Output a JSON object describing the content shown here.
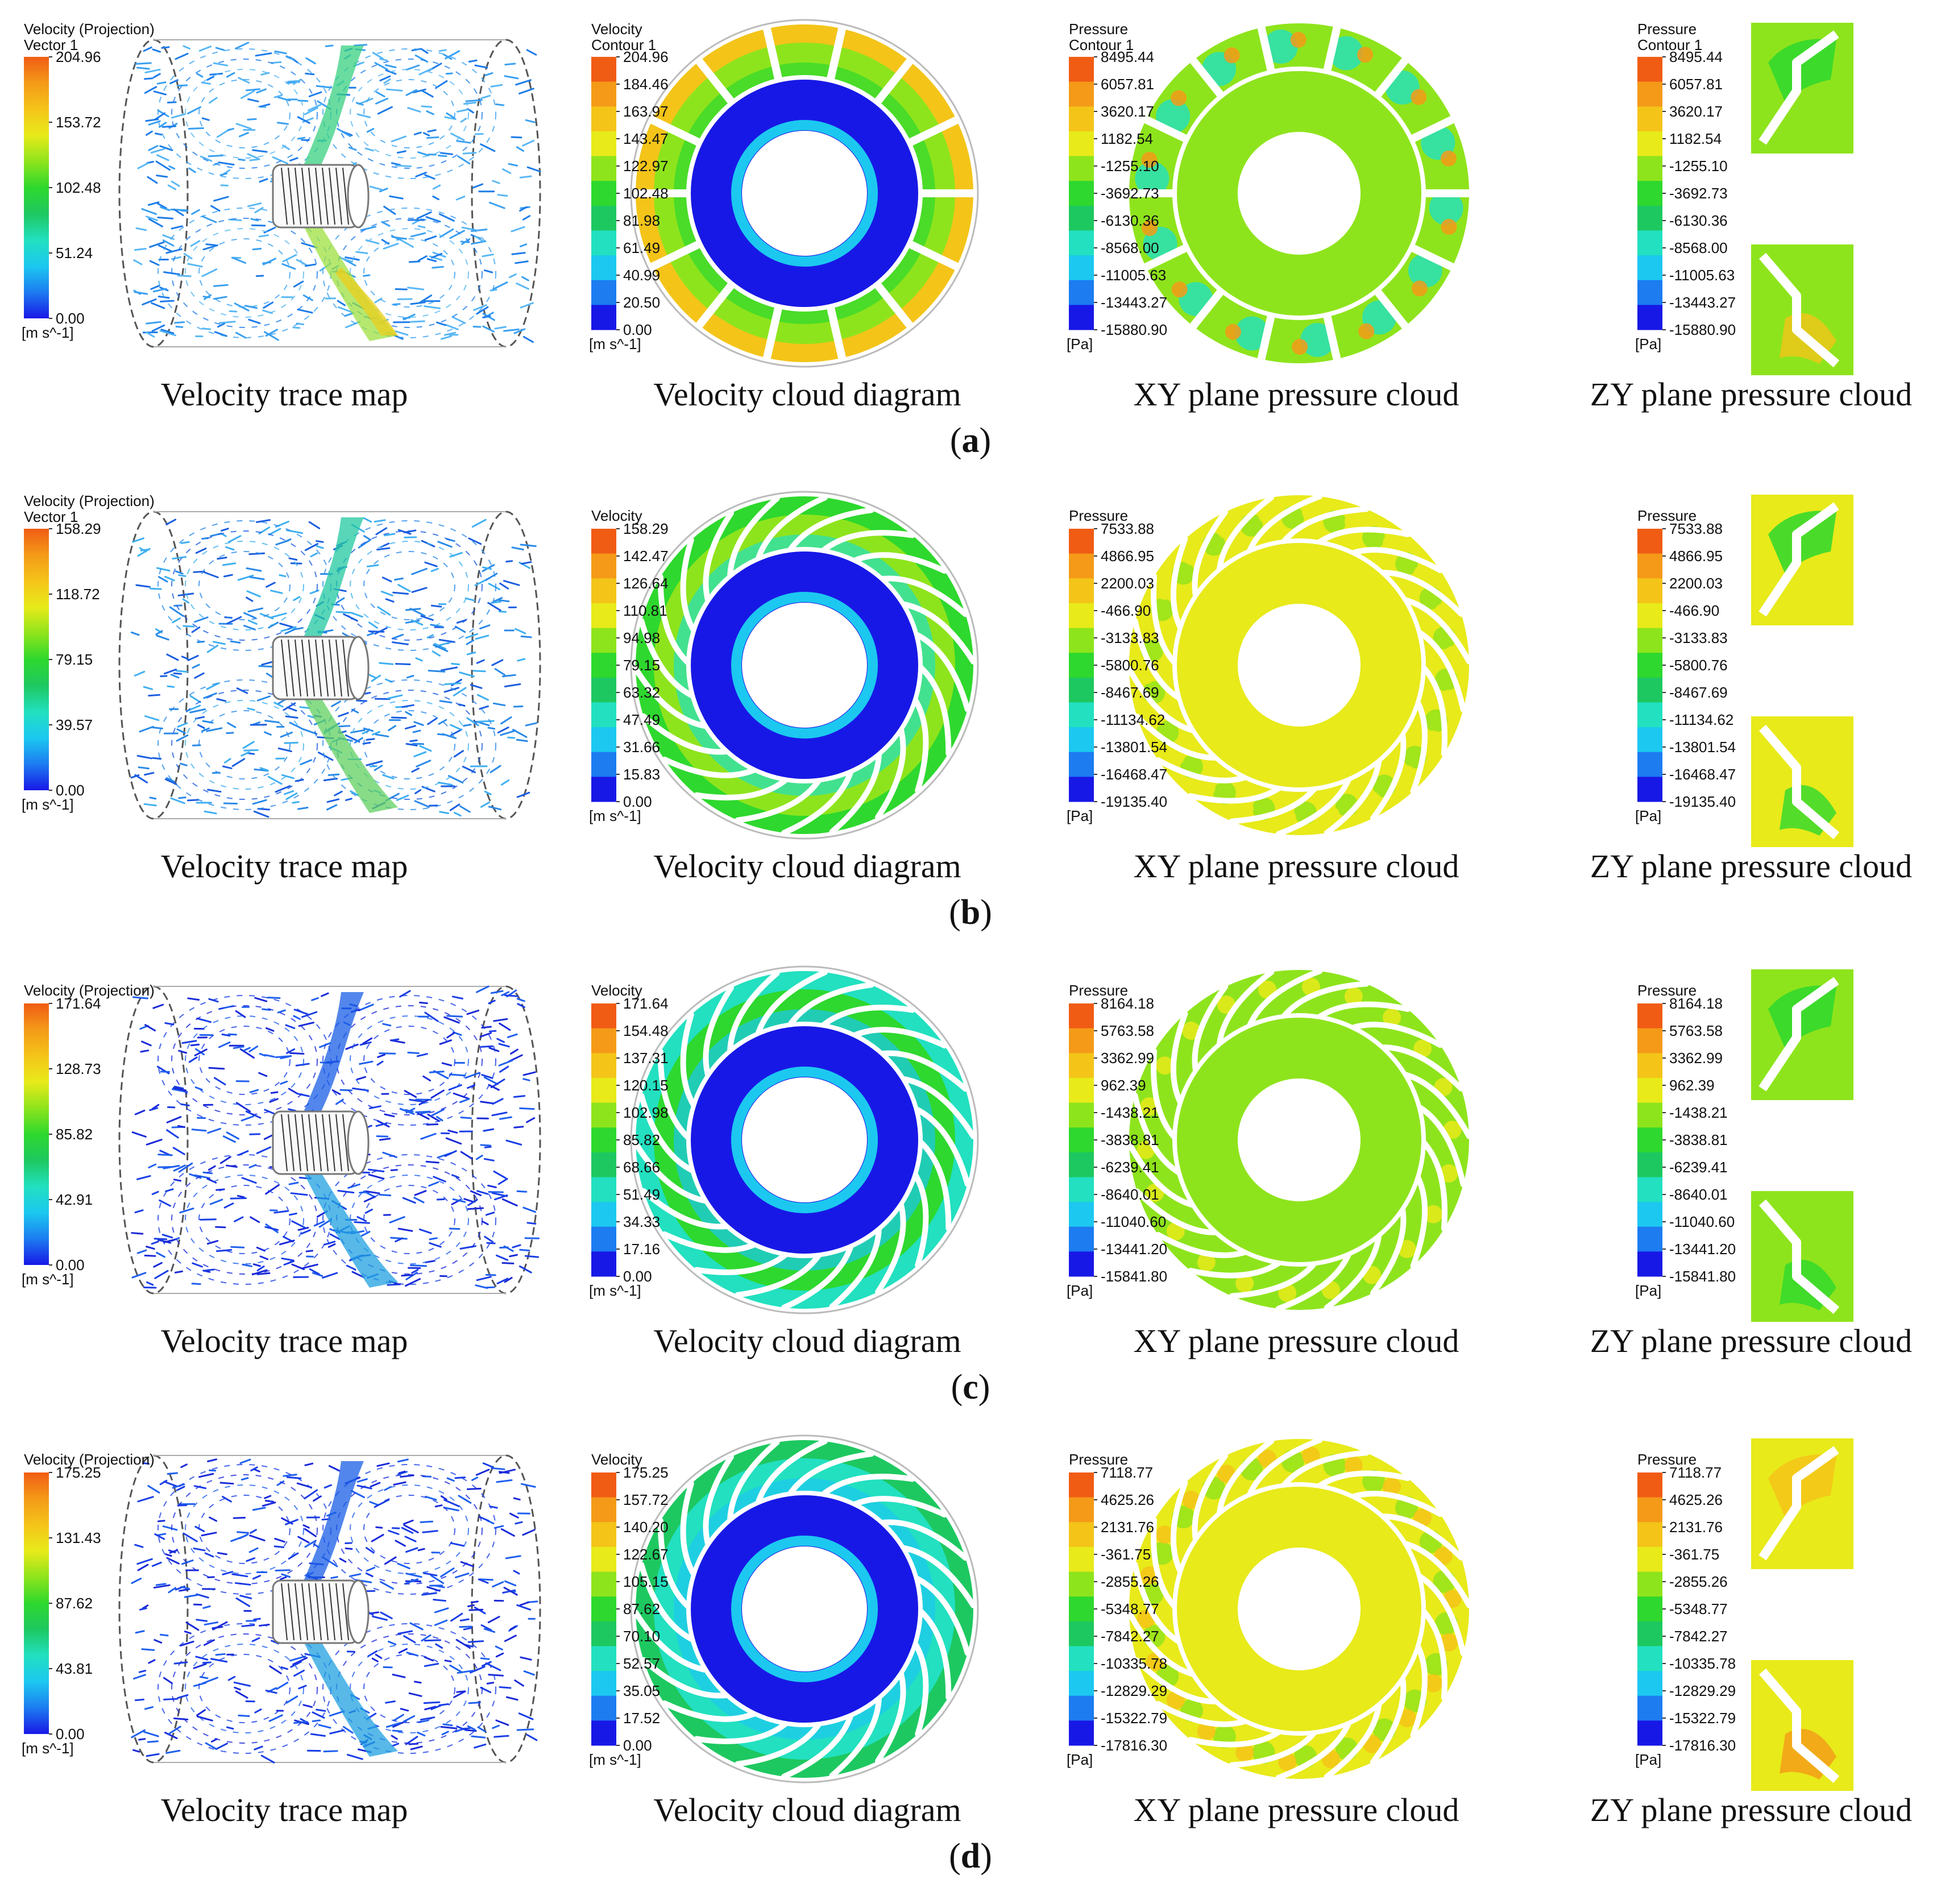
{
  "captions": [
    "Velocity trace map",
    "Velocity cloud diagram",
    "XY plane pressure cloud",
    "ZY plane pressure cloud"
  ],
  "colors": {
    "scale": [
      "#1818e6",
      "#1c7cf0",
      "#1cc8f0",
      "#22e0c0",
      "#1ec860",
      "#2ed82e",
      "#8ee41c",
      "#e8ea1a",
      "#f4c419",
      "#f49a18",
      "#f05c14"
    ]
  },
  "rows": [
    {
      "label": "a",
      "blade": "straight",
      "velocity_trace": {
        "title": "Velocity (Projection)",
        "subtitle": "Vector 1",
        "unit": "[m s^-1]",
        "ticks": [
          "204.96",
          "153.72",
          "102.48",
          "51.24",
          "0.00"
        ]
      },
      "velocity_cloud": {
        "title": "Velocity",
        "subtitle": "Contour 1",
        "unit": "[m s^-1]",
        "ticks": [
          "204.96",
          "184.46",
          "163.97",
          "143.47",
          "122.97",
          "102.48",
          "81.98",
          "61.49",
          "40.99",
          "20.50",
          "0.00"
        ]
      },
      "pressure_xy": {
        "title": "Pressure",
        "subtitle": "Contour 1",
        "unit": "[Pa]",
        "ticks": [
          "8495.44",
          "6057.81",
          "3620.17",
          "1182.54",
          "-1255.10",
          "-3692.73",
          "-6130.36",
          "-8568.00",
          "-11005.63",
          "-13443.27",
          "-15880.90"
        ]
      },
      "pressure_zy": {
        "title": "Pressure",
        "subtitle": "Contour 1",
        "unit": "[Pa]",
        "ticks": [
          "8495.44",
          "6057.81",
          "3620.17",
          "1182.54",
          "-1255.10",
          "-3692.73",
          "-6130.36",
          "-8568.00",
          "-11005.63",
          "-13443.27",
          "-15880.90"
        ]
      }
    },
    {
      "label": "b",
      "blade": "curved",
      "velocity_trace": {
        "title": "Velocity (Projection)",
        "subtitle": "Vector 1",
        "unit": "[m s^-1]",
        "ticks": [
          "158.29",
          "118.72",
          "79.15",
          "39.57",
          "0.00"
        ]
      },
      "velocity_cloud": {
        "title": "Velocity",
        "subtitle": "",
        "unit": "[m s^-1]",
        "ticks": [
          "158.29",
          "142.47",
          "126.64",
          "110.81",
          "94.98",
          "79.15",
          "63.32",
          "47.49",
          "31.66",
          "15.83",
          "0.00"
        ]
      },
      "pressure_xy": {
        "title": "Pressure",
        "subtitle": "",
        "unit": "[Pa]",
        "ticks": [
          "7533.88",
          "4866.95",
          "2200.03",
          "-466.90",
          "-3133.83",
          "-5800.76",
          "-8467.69",
          "-11134.62",
          "-13801.54",
          "-16468.47",
          "-19135.40"
        ]
      },
      "pressure_zy": {
        "title": "Pressure",
        "subtitle": "",
        "unit": "[Pa]",
        "ticks": [
          "7533.88",
          "4866.95",
          "2200.03",
          "-466.90",
          "-3133.83",
          "-5800.76",
          "-8467.69",
          "-11134.62",
          "-13801.54",
          "-16468.47",
          "-19135.40"
        ]
      }
    },
    {
      "label": "c",
      "blade": "curved",
      "velocity_trace": {
        "title": "Velocity (Projection)",
        "subtitle": "",
        "unit": "[m s^-1]",
        "ticks": [
          "171.64",
          "128.73",
          "85.82",
          "42.91",
          "0.00"
        ]
      },
      "velocity_cloud": {
        "title": "Velocity",
        "subtitle": "",
        "unit": "[m s^-1]",
        "ticks": [
          "171.64",
          "154.48",
          "137.31",
          "120.15",
          "102.98",
          "85.82",
          "68.66",
          "51.49",
          "34.33",
          "17.16",
          "0.00"
        ]
      },
      "pressure_xy": {
        "title": "Pressure",
        "subtitle": "",
        "unit": "[Pa]",
        "ticks": [
          "8164.18",
          "5763.58",
          "3362.99",
          "962.39",
          "-1438.21",
          "-3838.81",
          "-6239.41",
          "-8640.01",
          "-11040.60",
          "-13441.20",
          "-15841.80"
        ]
      },
      "pressure_zy": {
        "title": "Pressure",
        "subtitle": "",
        "unit": "[Pa]",
        "ticks": [
          "8164.18",
          "5763.58",
          "3362.99",
          "962.39",
          "-1438.21",
          "-3838.81",
          "-6239.41",
          "-8640.01",
          "-11040.60",
          "-13441.20",
          "-15841.80"
        ]
      }
    },
    {
      "label": "d",
      "blade": "curved",
      "velocity_trace": {
        "title": "Velocity (Projection)",
        "subtitle": "",
        "unit": "[m s^-1]",
        "ticks": [
          "175.25",
          "131.43",
          "87.62",
          "43.81",
          "0.00"
        ]
      },
      "velocity_cloud": {
        "title": "Velocity",
        "subtitle": "",
        "unit": "[m s^-1]",
        "ticks": [
          "175.25",
          "157.72",
          "140.20",
          "122.67",
          "105.15",
          "87.62",
          "70.10",
          "52.57",
          "35.05",
          "17.52",
          "0.00"
        ]
      },
      "pressure_xy": {
        "title": "Pressure",
        "subtitle": "",
        "unit": "[Pa]",
        "ticks": [
          "7118.77",
          "4625.26",
          "2131.76",
          "-361.75",
          "-2855.26",
          "-5348.77",
          "-7842.27",
          "-10335.78",
          "-12829.29",
          "-15322.79",
          "-17816.30"
        ]
      },
      "pressure_zy": {
        "title": "Pressure",
        "subtitle": "",
        "unit": "[Pa]",
        "ticks": [
          "7118.77",
          "4625.26",
          "2131.76",
          "-361.75",
          "-2855.26",
          "-5348.77",
          "-7842.27",
          "-10335.78",
          "-12829.29",
          "-15322.79",
          "-17816.30"
        ]
      }
    }
  ]
}
